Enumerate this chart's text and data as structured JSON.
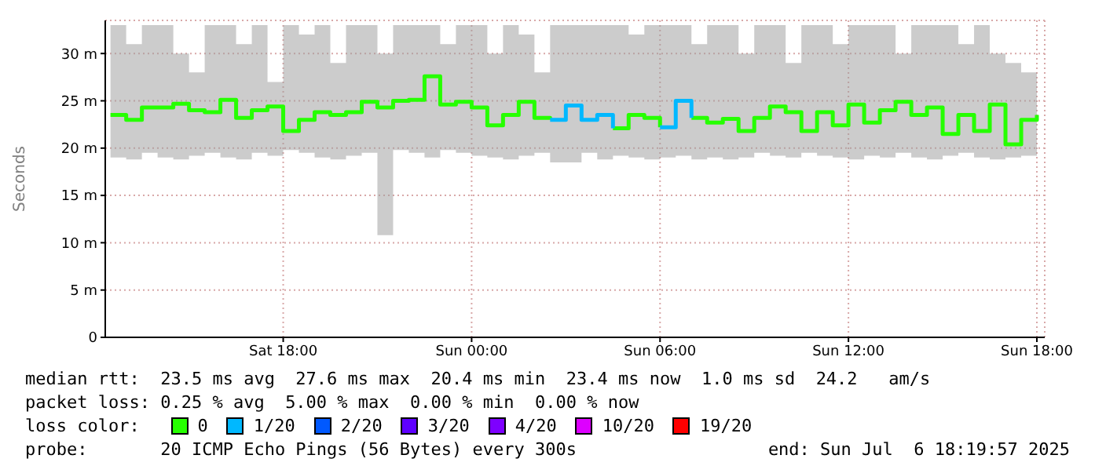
{
  "chart_data": {
    "type": "step",
    "ylabel": "Seconds",
    "legend_title": "loss color:",
    "legend": "bottom",
    "grid": true,
    "marker": "none",
    "xlim": [
      "2025-07-05T12:20",
      "2025-07-06T18:15"
    ],
    "xticks": [
      {
        "value": "2025-07-05T18:00",
        "label": "Sat 18:00"
      },
      {
        "value": "2025-07-06T00:00",
        "label": "Sun 00:00"
      },
      {
        "value": "2025-07-06T06:00",
        "label": "Sun 06:00"
      },
      {
        "value": "2025-07-06T12:00",
        "label": "Sun 12:00"
      },
      {
        "value": "2025-07-06T18:00",
        "label": "Sun 18:00"
      }
    ],
    "ylim": [
      0,
      33.5
    ],
    "yticks": [
      0,
      {
        "value": 5,
        "label": "5 m"
      },
      {
        "value": 10,
        "label": "10 m"
      },
      {
        "value": 15,
        "label": "15 m"
      },
      {
        "value": 20,
        "label": "20 m"
      },
      {
        "value": 25,
        "label": "25 m"
      },
      {
        "value": 30,
        "label": "30 m"
      }
    ],
    "x": [
      "2025-07-05T12:30",
      "2025-07-05T13:00",
      "2025-07-05T13:30",
      "2025-07-05T14:00",
      "2025-07-05T14:30",
      "2025-07-05T15:00",
      "2025-07-05T15:30",
      "2025-07-05T16:00",
      "2025-07-05T16:30",
      "2025-07-05T17:00",
      "2025-07-05T17:30",
      "2025-07-05T18:00",
      "2025-07-05T18:30",
      "2025-07-05T19:00",
      "2025-07-05T19:30",
      "2025-07-05T20:00",
      "2025-07-05T20:30",
      "2025-07-05T21:00",
      "2025-07-05T21:30",
      "2025-07-05T22:00",
      "2025-07-05T22:30",
      "2025-07-05T23:00",
      "2025-07-05T23:30",
      "2025-07-06T00:00",
      "2025-07-06T00:30",
      "2025-07-06T01:00",
      "2025-07-06T01:30",
      "2025-07-06T02:00",
      "2025-07-06T02:30",
      "2025-07-06T03:00",
      "2025-07-06T03:30",
      "2025-07-06T04:00",
      "2025-07-06T04:30",
      "2025-07-06T05:00",
      "2025-07-06T05:30",
      "2025-07-06T06:00",
      "2025-07-06T06:30",
      "2025-07-06T07:00",
      "2025-07-06T07:30",
      "2025-07-06T08:00",
      "2025-07-06T08:30",
      "2025-07-06T09:00",
      "2025-07-06T09:30",
      "2025-07-06T10:00",
      "2025-07-06T10:30",
      "2025-07-06T11:00",
      "2025-07-06T11:30",
      "2025-07-06T12:00",
      "2025-07-06T12:30",
      "2025-07-06T13:00",
      "2025-07-06T13:30",
      "2025-07-06T14:00",
      "2025-07-06T14:30",
      "2025-07-06T15:00",
      "2025-07-06T15:30",
      "2025-07-06T16:00",
      "2025-07-06T16:30",
      "2025-07-06T17:00",
      "2025-07-06T17:30",
      "2025-07-06T18:00"
    ],
    "series": [
      {
        "name": "0",
        "color": "#26ff00",
        "values": [
          23.5,
          23.0,
          24.3,
          24.3,
          24.7,
          24.0,
          23.8,
          25.1,
          23.2,
          24.0,
          24.4,
          21.8,
          23.0,
          23.8,
          23.5,
          23.8,
          24.9,
          24.3,
          25.0,
          25.1,
          27.6,
          24.6,
          24.9,
          24.3,
          22.4,
          23.5,
          24.9,
          23.2,
          23.0,
          null,
          null,
          null,
          22.1,
          23.5,
          23.2,
          22.2,
          null,
          23.2,
          22.7,
          23.1,
          21.8,
          23.2,
          24.4,
          23.8,
          21.8,
          23.8,
          22.4,
          24.6,
          22.7,
          24.0,
          24.9,
          23.5,
          24.3,
          21.5,
          23.5,
          21.8,
          24.6,
          20.4,
          23.0,
          23.5
        ],
        "lower": [
          19.0,
          18.8,
          19.5,
          19.0,
          18.8,
          19.2,
          19.5,
          19.0,
          18.8,
          19.5,
          19.2,
          19.8,
          19.5,
          19.0,
          18.8,
          19.2,
          19.5,
          10.8,
          19.8,
          19.5,
          19.0,
          19.8,
          19.5,
          19.2,
          19.0,
          18.8,
          19.2,
          19.5,
          18.5,
          18.5,
          19.5,
          18.8,
          19.2,
          19.0,
          18.8,
          19.0,
          19.2,
          18.8,
          19.0,
          18.8,
          19.0,
          19.5,
          19.2,
          19.0,
          19.5,
          19.2,
          19.0,
          18.8,
          19.2,
          19.0,
          19.5,
          19.0,
          18.8,
          19.2,
          19.5,
          19.0,
          18.8,
          19.0,
          19.2,
          19.8
        ],
        "upper": [
          33,
          31,
          33,
          33,
          30,
          28,
          33,
          33,
          31,
          33,
          27,
          33,
          32,
          33,
          29,
          33,
          33,
          30,
          33,
          33,
          33,
          31,
          33,
          33,
          30,
          33,
          32,
          28,
          33,
          33,
          33,
          33,
          33,
          32,
          33,
          33,
          33,
          31,
          33,
          33,
          30,
          33,
          33,
          29,
          33,
          33,
          31,
          33,
          33,
          33,
          30,
          33,
          33,
          33,
          31,
          33,
          30,
          29,
          28,
          30
        ]
      },
      {
        "name": "1/20",
        "color": "#00b8ff",
        "values": [
          null,
          null,
          null,
          null,
          null,
          null,
          null,
          null,
          null,
          null,
          null,
          null,
          null,
          null,
          null,
          null,
          null,
          null,
          null,
          null,
          null,
          null,
          null,
          null,
          null,
          null,
          null,
          null,
          23.0,
          24.5,
          23.0,
          23.5,
          22.1,
          null,
          null,
          22.2,
          25.0,
          23.2,
          null,
          null,
          null,
          null,
          null,
          null,
          null,
          null,
          null,
          null,
          null,
          null,
          null,
          null,
          null,
          null,
          null,
          null,
          null,
          null,
          null,
          null
        ]
      },
      {
        "name": "2/20",
        "color": "#0059ff",
        "values": [
          null,
          null,
          null,
          null,
          null,
          null,
          null,
          null,
          null,
          null,
          null,
          null,
          null,
          null,
          null,
          null,
          null,
          null,
          null,
          null,
          null,
          null,
          null,
          null,
          null,
          null,
          null,
          null,
          null,
          null,
          null,
          null,
          null,
          null,
          null,
          null,
          null,
          null,
          null,
          null,
          null,
          null,
          null,
          null,
          null,
          null,
          null,
          null,
          null,
          null,
          null,
          null,
          null,
          null,
          null,
          null,
          null,
          null,
          null,
          null
        ]
      },
      {
        "name": "3/20",
        "color": "#5e00ff",
        "values": [
          null,
          null,
          null,
          null,
          null,
          null,
          null,
          null,
          null,
          null,
          null,
          null,
          null,
          null,
          null,
          null,
          null,
          null,
          null,
          null,
          null,
          null,
          null,
          null,
          null,
          null,
          null,
          null,
          null,
          null,
          null,
          null,
          null,
          null,
          null,
          null,
          null,
          null,
          null,
          null,
          null,
          null,
          null,
          null,
          null,
          null,
          null,
          null,
          null,
          null,
          null,
          null,
          null,
          null,
          null,
          null,
          null,
          null,
          null,
          null
        ]
      },
      {
        "name": "4/20",
        "color": "#7e00ff",
        "values": [
          null,
          null,
          null,
          null,
          null,
          null,
          null,
          null,
          null,
          null,
          null,
          null,
          null,
          null,
          null,
          null,
          null,
          null,
          null,
          null,
          null,
          null,
          null,
          null,
          null,
          null,
          null,
          null,
          null,
          null,
          null,
          null,
          null,
          null,
          null,
          null,
          null,
          null,
          null,
          null,
          null,
          null,
          null,
          null,
          null,
          null,
          null,
          null,
          null,
          null,
          null,
          null,
          null,
          null,
          null,
          null,
          null,
          null,
          null,
          null
        ]
      },
      {
        "name": "10/20",
        "color": "#dd00ff",
        "values": [
          null,
          null,
          null,
          null,
          null,
          null,
          null,
          null,
          null,
          null,
          null,
          null,
          null,
          null,
          null,
          null,
          null,
          null,
          null,
          null,
          null,
          null,
          null,
          null,
          null,
          null,
          null,
          null,
          null,
          null,
          null,
          null,
          null,
          null,
          null,
          null,
          null,
          null,
          null,
          null,
          null,
          null,
          null,
          null,
          null,
          null,
          null,
          null,
          null,
          null,
          null,
          null,
          null,
          null,
          null,
          null,
          null,
          null,
          null,
          null
        ]
      },
      {
        "name": "19/20",
        "color": "#ff0000",
        "values": [
          null,
          null,
          null,
          null,
          null,
          null,
          null,
          null,
          null,
          null,
          null,
          null,
          null,
          null,
          null,
          null,
          null,
          null,
          null,
          null,
          null,
          null,
          null,
          null,
          null,
          null,
          null,
          null,
          null,
          null,
          null,
          null,
          null,
          null,
          null,
          null,
          null,
          null,
          null,
          null,
          null,
          null,
          null,
          null,
          null,
          null,
          null,
          null,
          null,
          null,
          null,
          null,
          null,
          null,
          null,
          null,
          null,
          null,
          null,
          null
        ]
      }
    ],
    "annotations": [
      "median rtt:  23.5 ms avg  27.6 ms max  20.4 ms min  23.4 ms now  1.0 ms sd  24.2   am/s",
      "packet loss: 0.25 % avg  5.00 % max  0.00 % min  0.00 % now",
      "probe:       20 ICMP Echo Pings (56 Bytes) every 300s",
      "end: Sun Jul  6 18:19:57 2025"
    ]
  }
}
